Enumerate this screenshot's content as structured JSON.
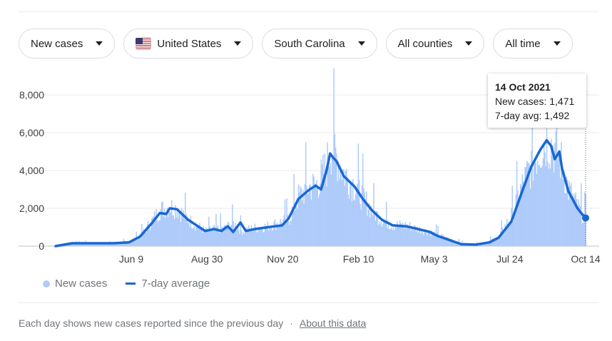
{
  "filters": {
    "metric": "New cases",
    "country": "United States",
    "state": "South Carolina",
    "county": "All counties",
    "range": "All time"
  },
  "tooltip": {
    "date": "14 Oct 2021",
    "new_cases": "New cases: 1,471",
    "avg": "7-day avg: 1,492"
  },
  "legend": {
    "bars": "New cases",
    "line": "7-day average"
  },
  "footer": {
    "note": "Each day shows new cases reported since the previous day",
    "separator": "·",
    "link": "About this data"
  },
  "colors": {
    "bars": "#aecbfa",
    "line": "#1967d2",
    "grid": "#e8eaed"
  },
  "chart_data": {
    "type": "bar",
    "yticks": [
      "0",
      "2,000",
      "4,000",
      "6,000",
      "8,000"
    ],
    "ytick_values": [
      0,
      2000,
      4000,
      6000,
      8000
    ],
    "xticks": [
      "Jun 9",
      "Aug 30",
      "Nov 20",
      "Feb 10",
      "May 3",
      "Jul 24",
      "Oct 14"
    ],
    "ylim": [
      0,
      8800
    ],
    "x_start": "Mar 8, 2020",
    "x_end": "Oct 14, 2021",
    "grid": true,
    "series": [
      {
        "name": "New cases",
        "style": "bars",
        "points": [
          [
            "Mar 8, 2020",
            0
          ],
          [
            "Mar 26, 2020",
            120
          ],
          [
            "Apr 16, 2020",
            170
          ],
          [
            "May 10, 2020",
            130
          ],
          [
            "May 28, 2020",
            250
          ],
          [
            "Jun 9, 2020",
            500
          ],
          [
            "Jun 22, 2020",
            1300
          ],
          [
            "Jul 1, 2020",
            1900
          ],
          [
            "Jul 12, 2020",
            2100
          ],
          [
            "Jul 20, 2020",
            2000
          ],
          [
            "Aug 1, 2020",
            1400
          ],
          [
            "Aug 20, 2020",
            800
          ],
          [
            "Aug 30, 2020",
            900
          ],
          [
            "Sep 10, 2020",
            950
          ],
          [
            "Sep 20, 2020",
            1200
          ],
          [
            "Sep 30, 2020",
            800
          ],
          [
            "Oct 12, 2020",
            950
          ],
          [
            "Oct 28, 2020",
            1050
          ],
          [
            "Nov 13, 2020",
            1300
          ],
          [
            "Nov 20, 2020",
            1400
          ],
          [
            "Dec 1, 2020",
            2600
          ],
          [
            "Dec 12, 2020",
            3100
          ],
          [
            "Dec 22, 2020",
            3300
          ],
          [
            "Jan 1, 2021",
            4200
          ],
          [
            "Jan 5, 2021",
            5200
          ],
          [
            "Jan 10, 2021",
            5000
          ],
          [
            "Jan 20, 2021",
            3900
          ],
          [
            "Feb 1, 2021",
            3200
          ],
          [
            "Feb 10, 2021",
            2600
          ],
          [
            "Feb 20, 2021",
            1900
          ],
          [
            "Mar 3, 2021",
            1400
          ],
          [
            "Mar 15, 2021",
            1100
          ],
          [
            "Mar 30, 2021",
            1100
          ],
          [
            "Apr 12, 2021",
            900
          ],
          [
            "Apr 25, 2021",
            750
          ],
          [
            "May 3, 2021",
            600
          ],
          [
            "May 15, 2021",
            400
          ],
          [
            "May 30, 2021",
            160
          ],
          [
            "Jun 15, 2021",
            110
          ],
          [
            "Jun 30, 2021",
            260
          ],
          [
            "Jul 10, 2021",
            500
          ],
          [
            "Jul 24, 2021",
            1600
          ],
          [
            "Aug 5, 2021",
            3200
          ],
          [
            "Aug 15, 2021",
            4300
          ],
          [
            "Aug 25, 2021",
            5200
          ],
          [
            "Sep 1, 2021",
            5600
          ],
          [
            "Sep 8, 2021",
            5300
          ],
          [
            "Sep 15, 2021",
            4700
          ],
          [
            "Sep 20, 2021",
            4000
          ],
          [
            "Sep 25, 2021",
            3000
          ],
          [
            "Oct 5, 2021",
            2100
          ],
          [
            "Oct 10, 2021",
            1700
          ],
          [
            "Oct 14, 2021",
            1471
          ]
        ]
      },
      {
        "name": "7-day average",
        "style": "line",
        "points": [
          [
            "Mar 8, 2020",
            0
          ],
          [
            "Mar 26, 2020",
            150
          ],
          [
            "Apr 16, 2020",
            150
          ],
          [
            "May 10, 2020",
            150
          ],
          [
            "May 28, 2020",
            200
          ],
          [
            "Jun 9, 2020",
            500
          ],
          [
            "Jun 22, 2020",
            1200
          ],
          [
            "Jul 1, 2020",
            1750
          ],
          [
            "Jul 8, 2020",
            1700
          ],
          [
            "Jul 12, 2020",
            2000
          ],
          [
            "Jul 20, 2020",
            1950
          ],
          [
            "Aug 1, 2020",
            1400
          ],
          [
            "Aug 20, 2020",
            800
          ],
          [
            "Aug 30, 2020",
            900
          ],
          [
            "Sep 7, 2020",
            800
          ],
          [
            "Sep 14, 2020",
            1050
          ],
          [
            "Sep 20, 2020",
            750
          ],
          [
            "Sep 28, 2020",
            1250
          ],
          [
            "Oct 4, 2020",
            800
          ],
          [
            "Oct 14, 2020",
            900
          ],
          [
            "Oct 28, 2020",
            1000
          ],
          [
            "Nov 13, 2020",
            1100
          ],
          [
            "Nov 20, 2020",
            1450
          ],
          [
            "Dec 1, 2020",
            2500
          ],
          [
            "Dec 12, 2020",
            2950
          ],
          [
            "Dec 20, 2020",
            3200
          ],
          [
            "Dec 26, 2020",
            3000
          ],
          [
            "Jan 1, 2021",
            4000
          ],
          [
            "Jan 5, 2021",
            4900
          ],
          [
            "Jan 8, 2021",
            4700
          ],
          [
            "Jan 12, 2021",
            4500
          ],
          [
            "Jan 20, 2021",
            3700
          ],
          [
            "Feb 1, 2021",
            3150
          ],
          [
            "Feb 10, 2021",
            2500
          ],
          [
            "Feb 20, 2021",
            1900
          ],
          [
            "Mar 3, 2021",
            1400
          ],
          [
            "Mar 15, 2021",
            1100
          ],
          [
            "Mar 30, 2021",
            1050
          ],
          [
            "Apr 12, 2021",
            900
          ],
          [
            "Apr 25, 2021",
            750
          ],
          [
            "May 3, 2021",
            550
          ],
          [
            "May 15, 2021",
            350
          ],
          [
            "May 30, 2021",
            100
          ],
          [
            "Jun 15, 2021",
            80
          ],
          [
            "Jun 30, 2021",
            200
          ],
          [
            "Jul 10, 2021",
            450
          ],
          [
            "Jul 24, 2021",
            1300
          ],
          [
            "Aug 5, 2021",
            2900
          ],
          [
            "Aug 15, 2021",
            4200
          ],
          [
            "Aug 25, 2021",
            5100
          ],
          [
            "Sep 1, 2021",
            5600
          ],
          [
            "Sep 6, 2021",
            5300
          ],
          [
            "Sep 10, 2021",
            4600
          ],
          [
            "Sep 15, 2021",
            5000
          ],
          [
            "Sep 18, 2021",
            4100
          ],
          [
            "Sep 25, 2021",
            2900
          ],
          [
            "Oct 5, 2021",
            2000
          ],
          [
            "Oct 10, 2021",
            1700
          ],
          [
            "Oct 14, 2021",
            1492
          ]
        ]
      }
    ]
  }
}
